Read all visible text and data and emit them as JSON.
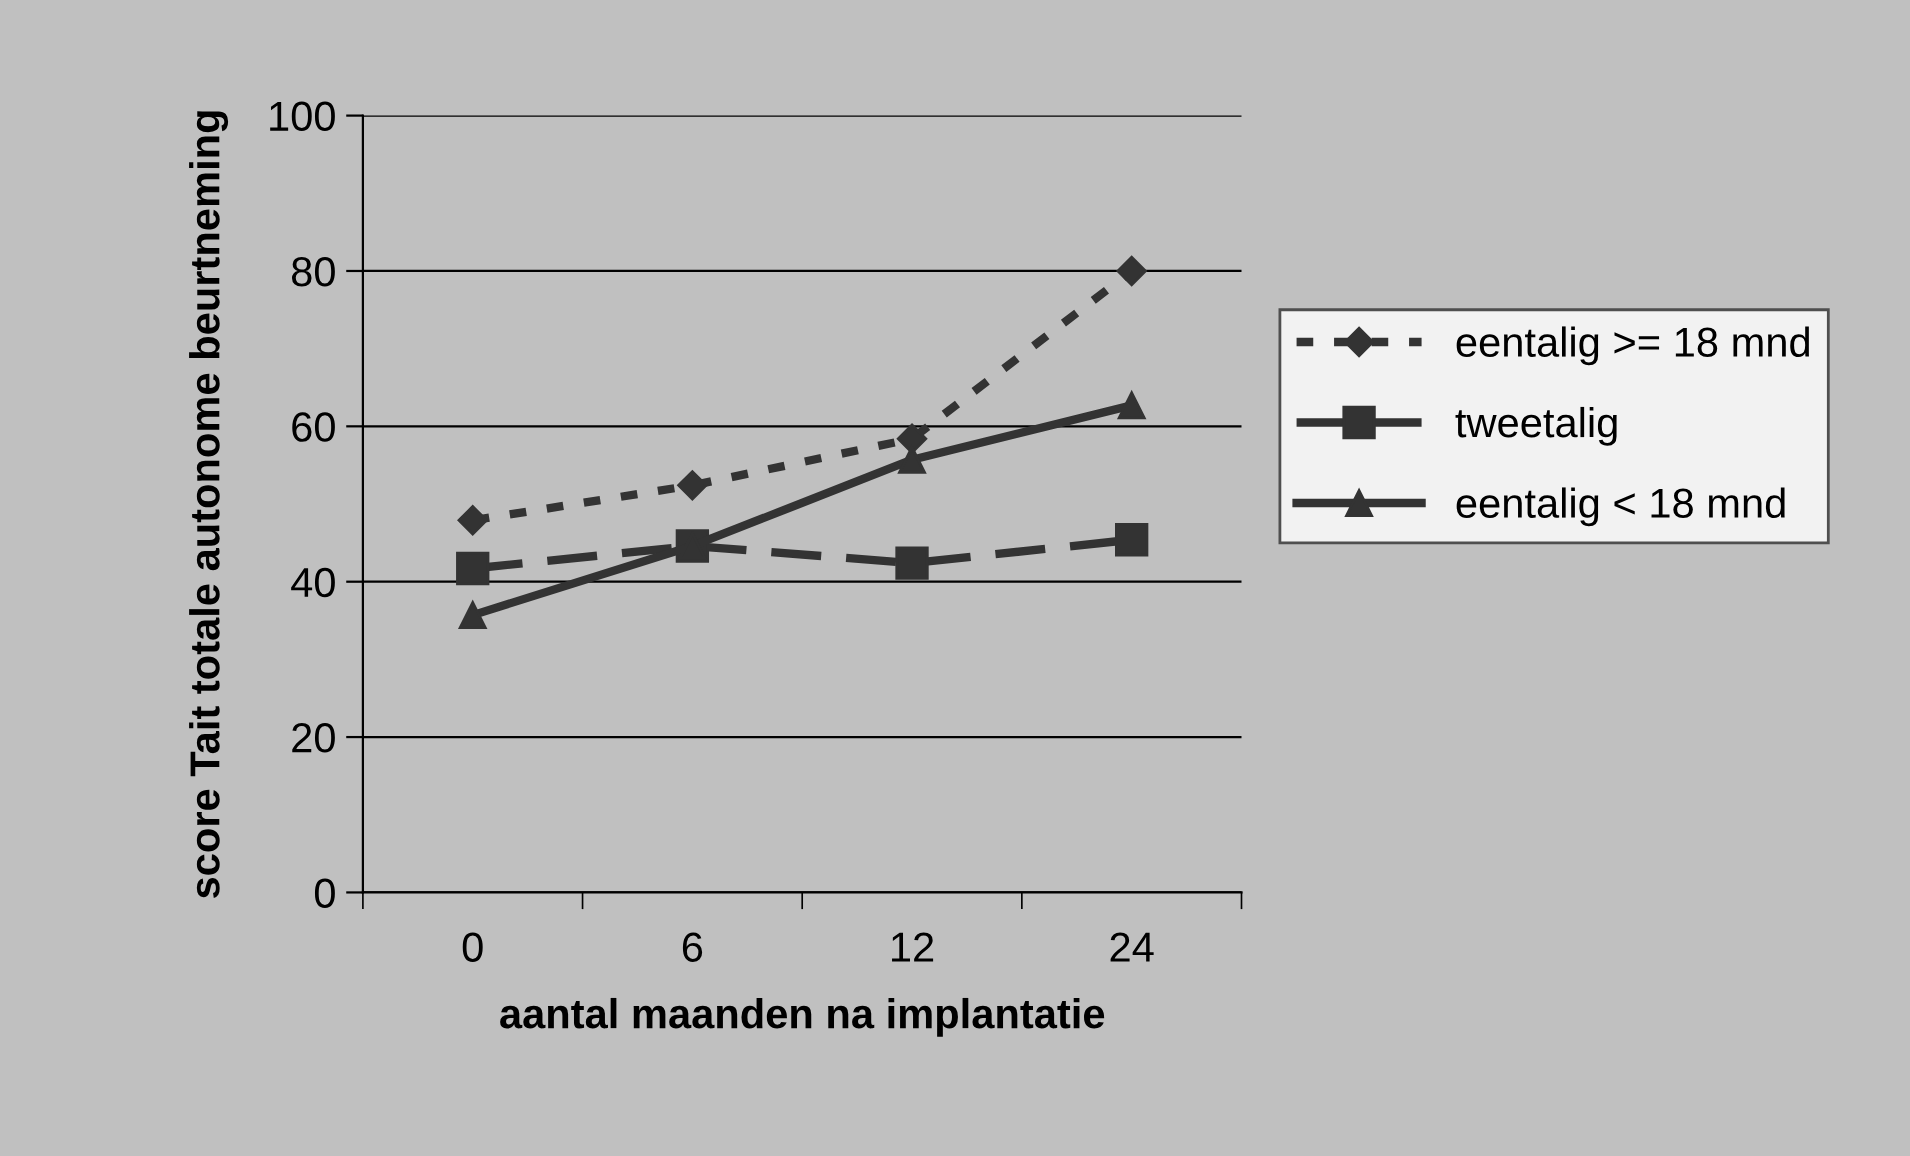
{
  "chart_data": {
    "type": "line",
    "xlabel": "aantal maanden na implantatie",
    "ylabel": "score Tait totale autonome beurtneming",
    "categories": [
      "0",
      "6",
      "12",
      "24"
    ],
    "series": [
      {
        "name": "eentalig >= 18 mnd",
        "color": "#333333",
        "values": [
          47.9,
          52.4,
          58.4,
          80
        ],
        "marker": "diamond",
        "line_style": "dotted"
      },
      {
        "name": "tweetalig",
        "color": "#333333",
        "values": [
          41.7,
          44.6,
          42.4,
          45.4
        ],
        "marker": "square",
        "line_style": "dashed"
      },
      {
        "name": "eentalig < 18 mnd",
        "color": "#333333",
        "values": [
          35.7,
          44.6,
          55.7,
          62.7
        ],
        "marker": "triangle",
        "line_style": "solid"
      }
    ],
    "ylim": [
      0,
      100
    ],
    "yticks": [
      0,
      20,
      40,
      60,
      80,
      100
    ],
    "grid": "y",
    "legend": "right"
  }
}
